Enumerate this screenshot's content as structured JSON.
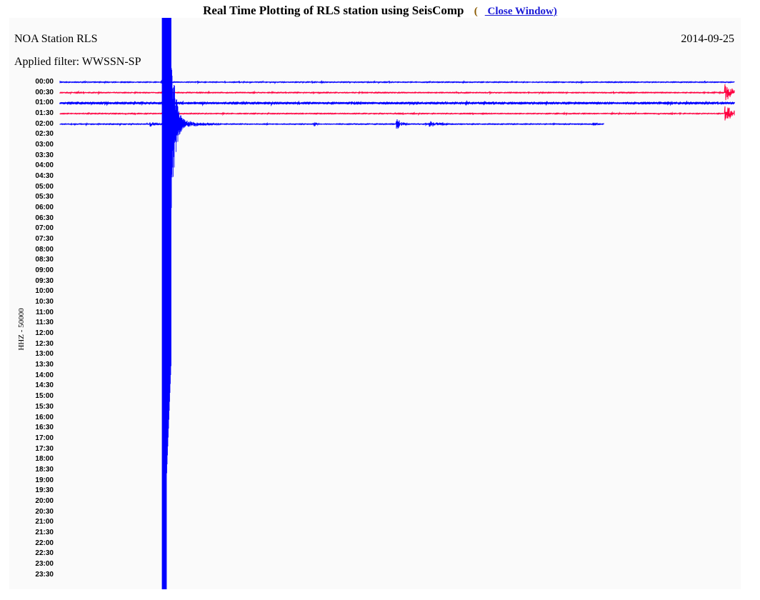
{
  "header": {
    "title": "Real Time Plotting of RLS station using SeisComp",
    "close_paren_open": "(",
    "close_link": " Close Window)"
  },
  "plot": {
    "station": "NOA Station RLS",
    "filter": "Applied filter: WWSSN-SP",
    "date": "2014-09-25",
    "channel_label": "HHZ - 50000",
    "trace_colors": [
      "#0000ff",
      "#ff0040"
    ],
    "time_labels": [
      "00:00",
      "00:30",
      "01:00",
      "01:30",
      "02:00",
      "02:30",
      "03:00",
      "03:30",
      "04:00",
      "04:30",
      "05:00",
      "05:30",
      "06:00",
      "06:30",
      "07:00",
      "07:30",
      "08:00",
      "08:30",
      "09:00",
      "09:30",
      "10:00",
      "10:30",
      "11:00",
      "11:30",
      "12:00",
      "12:30",
      "13:00",
      "13:30",
      "14:00",
      "14:30",
      "15:00",
      "15:30",
      "16:00",
      "16:30",
      "17:00",
      "17:30",
      "18:00",
      "18:30",
      "19:00",
      "19:30",
      "20:00",
      "20:30",
      "21:00",
      "21:30",
      "22:00",
      "22:30",
      "23:00",
      "23:30"
    ],
    "recorded_rows": 5
  }
}
